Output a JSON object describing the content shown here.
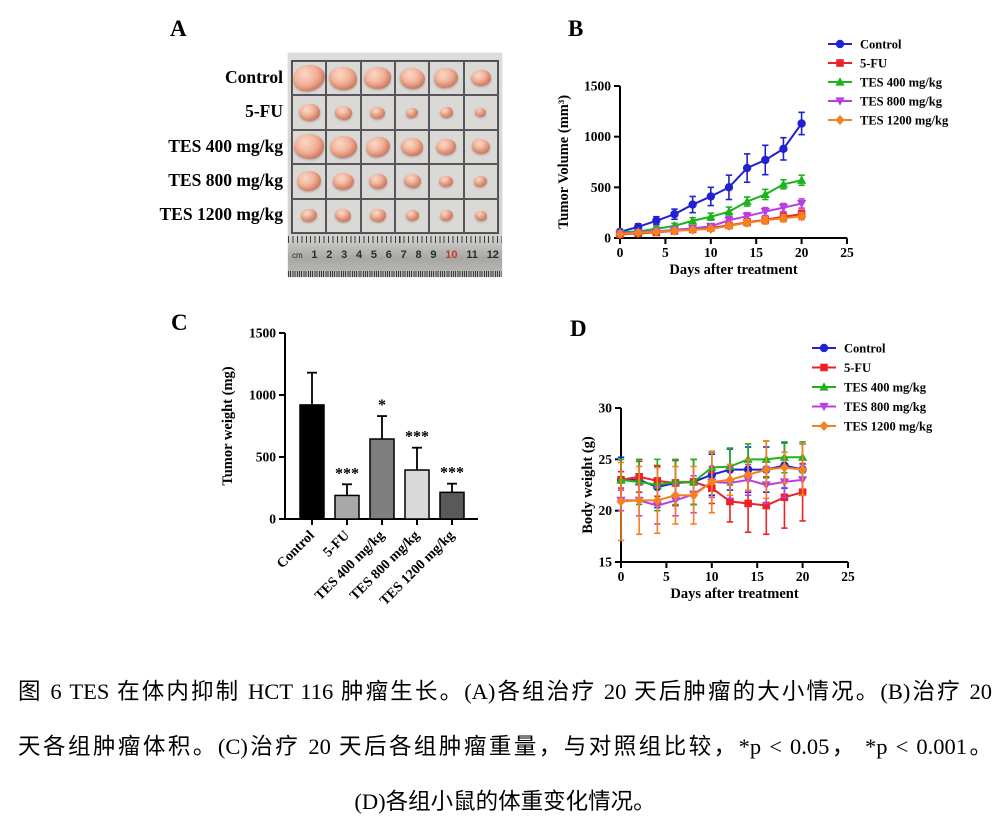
{
  "panels": {
    "a": "A",
    "b": "B",
    "c": "C",
    "d": "D"
  },
  "panel_a": {
    "row_labels": [
      "Control",
      "5-FU",
      "TES 400 mg/kg",
      "TES 800 mg/kg",
      "TES 1200 mg/kg"
    ],
    "tumor_sizes": [
      [
        32,
        28,
        27,
        25,
        24,
        20
      ],
      [
        21,
        17,
        15,
        12,
        13,
        11
      ],
      [
        30,
        27,
        24,
        22,
        20,
        18
      ],
      [
        24,
        21,
        18,
        17,
        14,
        13
      ],
      [
        16,
        16,
        16,
        13,
        13,
        12
      ]
    ],
    "ruler": {
      "unit": "cm",
      "numbers": [
        "1",
        "2",
        "3",
        "4",
        "5",
        "6",
        "7",
        "8",
        "9",
        "10",
        "11",
        "12"
      ],
      "highlighted_number": "10"
    }
  },
  "chart_data": [
    {
      "id": "B",
      "type": "line",
      "xlabel": "Days after treatment",
      "ylabel": "Tumor Volume (mm³)",
      "xlim": [
        0,
        25
      ],
      "ylim": [
        0,
        1500
      ],
      "xticks": [
        0,
        5,
        10,
        15,
        20,
        25
      ],
      "yticks": [
        0,
        500,
        1000,
        1500
      ],
      "x": [
        0,
        2,
        4,
        6,
        8,
        10,
        12,
        14,
        16,
        18,
        20
      ],
      "legend_position": "top-right",
      "grid": false,
      "series": [
        {
          "name": "Control",
          "color": "#2121d2",
          "marker": "circle",
          "values": [
            60,
            110,
            170,
            235,
            330,
            410,
            500,
            690,
            770,
            880,
            1130
          ],
          "err": [
            25,
            30,
            40,
            50,
            80,
            90,
            120,
            140,
            145,
            110,
            110
          ]
        },
        {
          "name": "5-FU",
          "color": "#ec2227",
          "marker": "square",
          "values": [
            35,
            45,
            55,
            70,
            85,
            100,
            125,
            155,
            180,
            210,
            235
          ],
          "err": [
            10,
            12,
            15,
            18,
            20,
            25,
            30,
            35,
            40,
            45,
            40
          ]
        },
        {
          "name": "TES 400 mg/kg",
          "color": "#1db31d",
          "marker": "triangle-up",
          "values": [
            55,
            65,
            90,
            120,
            170,
            210,
            260,
            360,
            430,
            530,
            570
          ],
          "err": [
            15,
            15,
            20,
            25,
            30,
            35,
            45,
            45,
            50,
            45,
            50
          ]
        },
        {
          "name": "TES 800 mg/kg",
          "color": "#bb3fe0",
          "marker": "triangle-down",
          "values": [
            45,
            55,
            65,
            80,
            95,
            115,
            175,
            215,
            260,
            300,
            340
          ],
          "err": [
            12,
            14,
            15,
            18,
            20,
            25,
            35,
            35,
            40,
            40,
            45
          ]
        },
        {
          "name": "TES 1200 mg/kg",
          "color": "#f58220",
          "marker": "diamond",
          "values": [
            40,
            50,
            60,
            70,
            80,
            90,
            120,
            150,
            175,
            195,
            215
          ],
          "err": [
            10,
            12,
            14,
            16,
            18,
            20,
            25,
            30,
            35,
            35,
            35
          ]
        }
      ]
    },
    {
      "id": "C",
      "type": "bar",
      "ylabel": "Tumor weight (mg)",
      "ylim": [
        0,
        1500
      ],
      "yticks": [
        0,
        500,
        1000,
        1500
      ],
      "categories": [
        "Control",
        "5-FU",
        "TES 400 mg/kg",
        "TES 800 mg/kg",
        "TES 1200 mg/kg"
      ],
      "values": [
        920,
        190,
        645,
        395,
        215
      ],
      "err": [
        260,
        90,
        185,
        180,
        70
      ],
      "sig": [
        "",
        "***",
        "*",
        "***",
        "***"
      ],
      "bar_colors": [
        "#000000",
        "#a8a8a8",
        "#7f7f7f",
        "#d9d9d9",
        "#595959"
      ],
      "grid": false
    },
    {
      "id": "D",
      "type": "line",
      "xlabel": "Days after treatment",
      "ylabel": "Body weight (g)",
      "xlim": [
        0,
        25
      ],
      "ylim": [
        15,
        30
      ],
      "xticks": [
        0,
        5,
        10,
        15,
        20,
        25
      ],
      "yticks": [
        15,
        20,
        25,
        30
      ],
      "x": [
        0,
        2,
        4,
        6,
        8,
        10,
        12,
        14,
        16,
        18,
        20
      ],
      "legend_position": "top-right",
      "grid": false,
      "series": [
        {
          "name": "Control",
          "color": "#2121d2",
          "marker": "circle",
          "values": [
            23.0,
            23.0,
            22.3,
            22.7,
            22.8,
            23.5,
            24.0,
            24.0,
            24.0,
            24.4,
            24.0
          ],
          "err": [
            2.2,
            2.0,
            2.0,
            2.2,
            2.2,
            2.0,
            2.0,
            2.2,
            2.2,
            2.2,
            2.5
          ]
        },
        {
          "name": "5-FU",
          "color": "#ec2227",
          "marker": "square",
          "values": [
            23.0,
            23.3,
            22.9,
            22.7,
            22.8,
            22.2,
            20.9,
            20.7,
            20.5,
            21.3,
            21.8
          ],
          "err": [
            0.8,
            1.5,
            1.5,
            2.2,
            2.2,
            1.5,
            2.0,
            2.8,
            2.8,
            3.0,
            2.8
          ]
        },
        {
          "name": "TES 400 mg/kg",
          "color": "#1db31d",
          "marker": "triangle-up",
          "values": [
            23.0,
            22.8,
            22.5,
            22.8,
            22.8,
            24.2,
            24.3,
            25.0,
            25.0,
            25.2,
            25.2
          ],
          "err": [
            2.0,
            2.2,
            2.5,
            2.2,
            2.2,
            1.5,
            1.8,
            1.5,
            1.8,
            1.5,
            1.5
          ]
        },
        {
          "name": "TES 800 mg/kg",
          "color": "#bb3fe0",
          "marker": "triangle-down",
          "values": [
            21.0,
            21.0,
            20.5,
            21.0,
            21.6,
            22.8,
            22.7,
            23.0,
            22.5,
            22.8,
            23.0
          ],
          "err": [
            1.0,
            1.5,
            1.8,
            1.5,
            1.8,
            1.5,
            1.5,
            1.5,
            1.8,
            1.5,
            1.5
          ]
        },
        {
          "name": "TES 1200 mg/kg",
          "color": "#f58220",
          "marker": "diamond",
          "values": [
            20.9,
            21.0,
            21.0,
            21.5,
            21.5,
            22.8,
            23.0,
            23.5,
            24.0,
            24.2,
            24.0
          ],
          "err": [
            3.8,
            3.3,
            3.2,
            2.8,
            2.8,
            3.0,
            1.5,
            1.5,
            2.8,
            1.5,
            2.5
          ]
        }
      ]
    }
  ],
  "caption": {
    "line1": "图 6 TES 在体内抑制 HCT 116 肿瘤生长。(A)各组治疗 20 天后肿瘤的大小情况。(B)治疗 20",
    "line2": "天各组肿瘤体积。(C)治疗 20 天后各组肿瘤重量，与对照组比较，*p < 0.05， *p < 0.001。",
    "line3": "(D)各组小鼠的体重变化情况。"
  }
}
